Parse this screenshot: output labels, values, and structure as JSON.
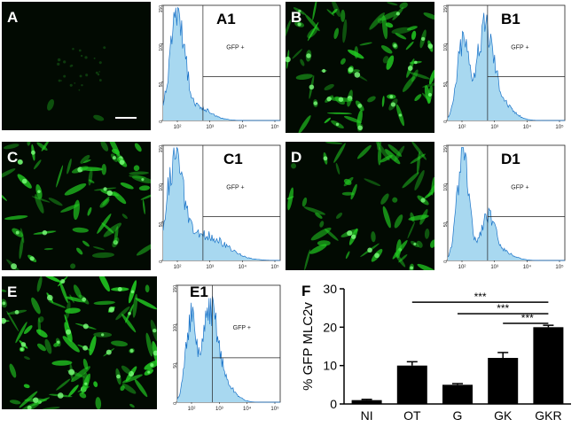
{
  "panels": {
    "A": {
      "letter": "A",
      "brightness": 0.02,
      "seed": 11
    },
    "B": {
      "letter": "B",
      "brightness": 0.85,
      "seed": 23
    },
    "C": {
      "letter": "C",
      "brightness": 0.75,
      "seed": 37
    },
    "D": {
      "letter": "D",
      "brightness": 0.7,
      "seed": 41
    },
    "E": {
      "letter": "E",
      "brightness": 0.95,
      "seed": 53
    },
    "A1": {
      "letter": "A1",
      "gate_label": "GFP +",
      "peaks": "single-low"
    },
    "B1": {
      "letter": "B1",
      "gate_label": "GFP +",
      "peaks": "double"
    },
    "C1": {
      "letter": "C1",
      "gate_label": "GFP +",
      "peaks": "single-tail"
    },
    "D1": {
      "letter": "D1",
      "gate_label": "GFP +",
      "peaks": "double-low"
    },
    "E1": {
      "letter": "E1",
      "gate_label": "GFP +",
      "peaks": "double"
    }
  },
  "histogram_axis": {
    "y_ticks": [
      "150",
      "100",
      "50",
      "0"
    ],
    "x_ticks": [
      "10²",
      "10³",
      "10⁴",
      "10⁵"
    ]
  },
  "colors": {
    "fluorescence": "#22cc22",
    "histogram_fill": "#a8d8f0",
    "histogram_line": "#1a73c8"
  },
  "chart_data": {
    "type": "bar",
    "panel_letter": "F",
    "categories": [
      "NI",
      "OT",
      "G",
      "GK",
      "GKR"
    ],
    "values": [
      1,
      10,
      5,
      12,
      20
    ],
    "errors": [
      0.2,
      1.0,
      0.3,
      1.4,
      0.5
    ],
    "ylabel": "% GFP MLC2v",
    "ylim": [
      0,
      30
    ],
    "y_ticks": [
      "0",
      "10",
      "20",
      "30"
    ],
    "significance": [
      {
        "from": "OT",
        "to": "GKR",
        "label": "***"
      },
      {
        "from": "G",
        "to": "GKR",
        "label": "***"
      },
      {
        "from": "GK",
        "to": "GKR",
        "label": "***"
      }
    ],
    "grid": false
  }
}
